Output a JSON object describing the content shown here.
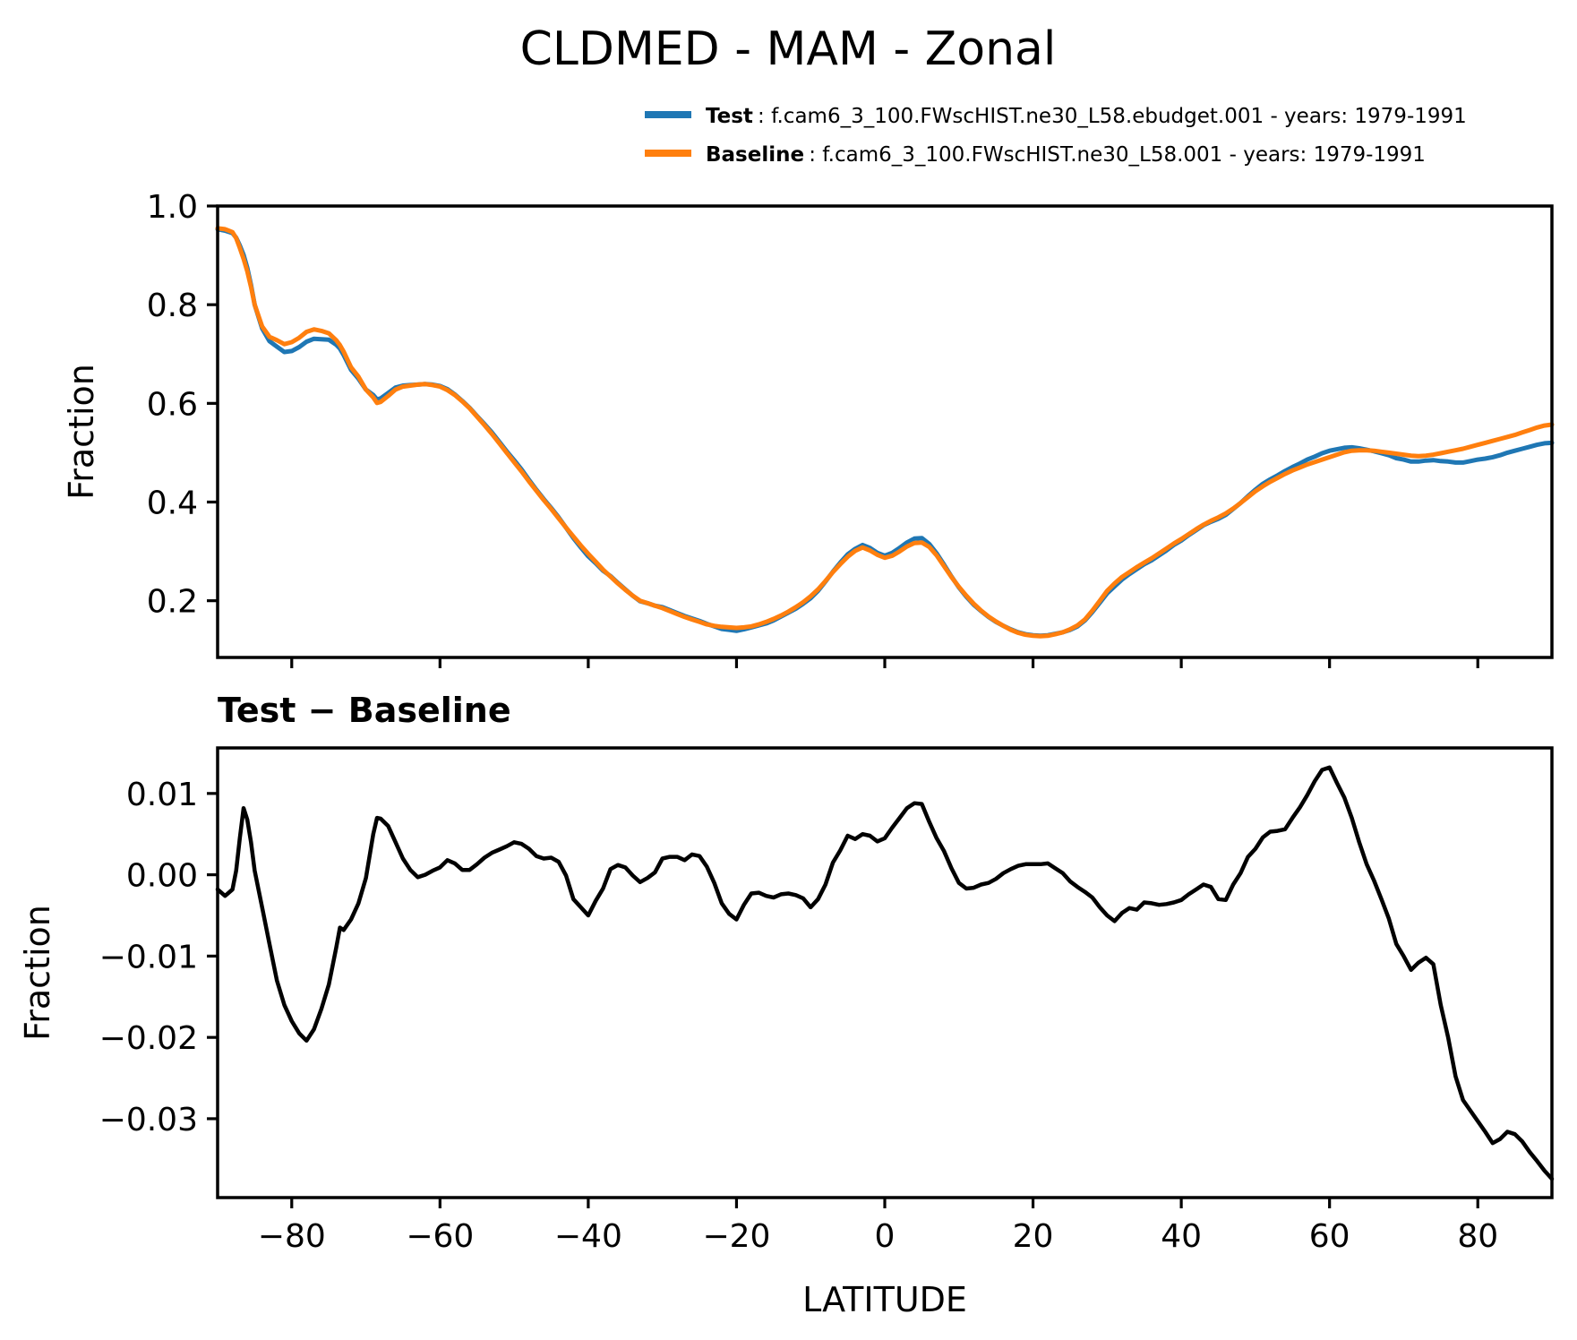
{
  "title": "CLDMED - MAM - Zonal",
  "legend": {
    "entries": [
      {
        "label": "Test",
        "rest": " : f.cam6_3_100.FWscHIST.ne30_L58.ebudget.001 - years: 1979-1991",
        "color": "#1f77b4"
      },
      {
        "label": "Baseline",
        "rest": " : f.cam6_3_100.FWscHIST.ne30_L58.001 - years: 1979-1991",
        "color": "#ff7f0e"
      }
    ]
  },
  "chart_data": {
    "type": "line",
    "x_axis_name": "LATITUDE",
    "xlim": [
      -90,
      90
    ],
    "grid": false,
    "legend_position": "top-right-above-axes",
    "x_ticks": {
      "values": [
        -80,
        -60,
        -40,
        -20,
        0,
        20,
        40,
        60,
        80
      ],
      "labels": [
        "−80",
        "−60",
        "−40",
        "−20",
        "0",
        "20",
        "40",
        "60",
        "80"
      ]
    },
    "x_latitude": [
      -90,
      -89,
      -88,
      -87.5,
      -87,
      -86.5,
      -86,
      -85.5,
      -85,
      -84,
      -83,
      -82,
      -81,
      -80,
      -79,
      -78,
      -77,
      -76,
      -75,
      -74,
      -73.5,
      -73,
      -72,
      -71,
      -70,
      -69,
      -68.5,
      -68,
      -67,
      -66,
      -65,
      -64,
      -63,
      -62,
      -61,
      -60,
      -59,
      -58,
      -57,
      -56,
      -55,
      -54,
      -53,
      -52,
      -51,
      -50,
      -49,
      -48,
      -47,
      -46,
      -45,
      -44,
      -43,
      -42,
      -41,
      -40,
      -39,
      -38,
      -37,
      -36,
      -35,
      -34,
      -33,
      -32,
      -31,
      -30,
      -29,
      -28,
      -27,
      -26,
      -25,
      -24,
      -23,
      -22,
      -21,
      -20,
      -19,
      -18,
      -17,
      -16,
      -15,
      -14,
      -13,
      -12,
      -11,
      -10,
      -9,
      -8,
      -7,
      -6,
      -5,
      -4,
      -3,
      -2,
      -1,
      0,
      1,
      2,
      3,
      4,
      5,
      6,
      7,
      8,
      9,
      10,
      11,
      12,
      13,
      14,
      15,
      16,
      17,
      18,
      19,
      20,
      21,
      22,
      23,
      24,
      25,
      26,
      27,
      28,
      29,
      30,
      31,
      32,
      33,
      34,
      35,
      36,
      37,
      38,
      39,
      40,
      41,
      42,
      43,
      44,
      45,
      46,
      47,
      48,
      49,
      50,
      51,
      52,
      53,
      54,
      55,
      56,
      57,
      58,
      59,
      60,
      61,
      62,
      63,
      64,
      65,
      66,
      67,
      68,
      69,
      70,
      71,
      72,
      73,
      74,
      75,
      76,
      77,
      78,
      79,
      80,
      81,
      82,
      83,
      84,
      85,
      86,
      87,
      88,
      89,
      90
    ],
    "panels": [
      {
        "name": "top",
        "ylabel": "Fraction",
        "ylim": [
          0.085,
          1.0
        ],
        "y_ticks": {
          "values": [
            1.0,
            0.8,
            0.6,
            0.4,
            0.2
          ],
          "labels": [
            "1.0",
            "0.8",
            "0.6",
            "0.4",
            "0.2"
          ]
        },
        "series": [
          {
            "name": "Test",
            "color": "#1f77b4",
            "values": [
              0.953,
              0.95,
              0.945,
              0.936,
              0.92,
              0.901,
              0.875,
              0.84,
              0.8,
              0.752,
              0.726,
              0.715,
              0.704,
              0.706,
              0.714,
              0.725,
              0.731,
              0.73,
              0.729,
              0.719,
              0.711,
              0.698,
              0.668,
              0.65,
              0.628,
              0.617,
              0.608,
              0.61,
              0.621,
              0.632,
              0.636,
              0.637,
              0.638,
              0.639,
              0.638,
              0.635,
              0.629,
              0.618,
              0.605,
              0.591,
              0.574,
              0.558,
              0.541,
              0.522,
              0.503,
              0.485,
              0.466,
              0.445,
              0.425,
              0.406,
              0.388,
              0.369,
              0.348,
              0.327,
              0.308,
              0.29,
              0.276,
              0.261,
              0.25,
              0.236,
              0.223,
              0.21,
              0.199,
              0.195,
              0.19,
              0.187,
              0.181,
              0.175,
              0.169,
              0.164,
              0.159,
              0.153,
              0.148,
              0.143,
              0.141,
              0.139,
              0.142,
              0.146,
              0.15,
              0.154,
              0.16,
              0.168,
              0.176,
              0.184,
              0.194,
              0.205,
              0.22,
              0.239,
              0.259,
              0.277,
              0.294,
              0.305,
              0.313,
              0.307,
              0.297,
              0.291,
              0.297,
              0.307,
              0.318,
              0.326,
              0.327,
              0.315,
              0.296,
              0.273,
              0.249,
              0.227,
              0.208,
              0.192,
              0.179,
              0.167,
              0.157,
              0.149,
              0.142,
              0.136,
              0.132,
              0.13,
              0.129,
              0.13,
              0.133,
              0.136,
              0.141,
              0.148,
              0.16,
              0.177,
              0.196,
              0.215,
              0.229,
              0.243,
              0.254,
              0.264,
              0.274,
              0.282,
              0.292,
              0.302,
              0.313,
              0.322,
              0.333,
              0.343,
              0.353,
              0.36,
              0.366,
              0.374,
              0.386,
              0.398,
              0.412,
              0.425,
              0.437,
              0.446,
              0.454,
              0.463,
              0.471,
              0.478,
              0.486,
              0.492,
              0.499,
              0.504,
              0.507,
              0.51,
              0.511,
              0.509,
              0.506,
              0.503,
              0.499,
              0.495,
              0.489,
              0.486,
              0.482,
              0.482,
              0.484,
              0.485,
              0.483,
              0.482,
              0.48,
              0.48,
              0.483,
              0.486,
              0.488,
              0.491,
              0.495,
              0.5,
              0.504,
              0.508,
              0.512,
              0.516,
              0.519,
              0.52
            ]
          },
          {
            "name": "Baseline",
            "color": "#ff7f0e",
            "values": [
              0.955,
              0.953,
              0.947,
              0.935,
              0.915,
              0.893,
              0.868,
              0.836,
              0.8,
              0.756,
              0.735,
              0.728,
              0.72,
              0.724,
              0.733,
              0.745,
              0.75,
              0.747,
              0.742,
              0.728,
              0.718,
              0.705,
              0.673,
              0.654,
              0.628,
              0.612,
              0.601,
              0.603,
              0.615,
              0.628,
              0.634,
              0.636,
              0.638,
              0.639,
              0.637,
              0.634,
              0.627,
              0.617,
              0.604,
              0.59,
              0.573,
              0.556,
              0.538,
              0.519,
              0.5,
              0.481,
              0.462,
              0.442,
              0.423,
              0.404,
              0.386,
              0.367,
              0.348,
              0.33,
              0.312,
              0.295,
              0.279,
              0.263,
              0.249,
              0.235,
              0.222,
              0.21,
              0.2,
              0.195,
              0.19,
              0.185,
              0.179,
              0.173,
              0.167,
              0.162,
              0.157,
              0.152,
              0.149,
              0.147,
              0.146,
              0.145,
              0.146,
              0.148,
              0.152,
              0.157,
              0.163,
              0.17,
              0.178,
              0.187,
              0.197,
              0.209,
              0.223,
              0.24,
              0.258,
              0.274,
              0.289,
              0.301,
              0.308,
              0.302,
              0.293,
              0.287,
              0.291,
              0.3,
              0.31,
              0.317,
              0.318,
              0.309,
              0.292,
              0.27,
              0.248,
              0.228,
              0.21,
              0.194,
              0.18,
              0.168,
              0.158,
              0.149,
              0.141,
              0.135,
              0.131,
              0.129,
              0.128,
              0.129,
              0.132,
              0.136,
              0.142,
              0.15,
              0.162,
              0.18,
              0.2,
              0.22,
              0.235,
              0.248,
              0.258,
              0.268,
              0.277,
              0.286,
              0.296,
              0.306,
              0.316,
              0.325,
              0.335,
              0.345,
              0.354,
              0.362,
              0.369,
              0.377,
              0.387,
              0.398,
              0.41,
              0.422,
              0.432,
              0.441,
              0.449,
              0.457,
              0.464,
              0.47,
              0.476,
              0.481,
              0.486,
              0.491,
              0.496,
              0.501,
              0.504,
              0.505,
              0.505,
              0.504,
              0.502,
              0.5,
              0.498,
              0.496,
              0.494,
              0.493,
              0.494,
              0.496,
              0.499,
              0.502,
              0.505,
              0.508,
              0.512,
              0.516,
              0.52,
              0.524,
              0.528,
              0.532,
              0.536,
              0.541,
              0.546,
              0.551,
              0.555,
              0.557
            ]
          }
        ]
      },
      {
        "name": "bottom",
        "title": "Test − Baseline",
        "xlabel": "LATITUDE",
        "ylabel": "Fraction",
        "ylim": [
          -0.0397,
          0.0156
        ],
        "y_ticks": {
          "values": [
            0.01,
            0.0,
            -0.01,
            -0.02,
            -0.03
          ],
          "labels": [
            "0.01",
            "0.00",
            "−0.01",
            "−0.02",
            "−0.03"
          ]
        },
        "series": [
          {
            "name": "Test − Baseline",
            "color": "#000000",
            "values": [
              -0.0018,
              -0.0026,
              -0.0018,
              0.0005,
              0.0045,
              0.0082,
              0.0068,
              0.004,
              0.0005,
              -0.004,
              -0.0085,
              -0.013,
              -0.016,
              -0.018,
              -0.0195,
              -0.0204,
              -0.019,
              -0.0165,
              -0.0135,
              -0.009,
              -0.0065,
              -0.0068,
              -0.0055,
              -0.0035,
              -0.0004,
              0.005,
              0.007,
              0.0069,
              0.006,
              0.004,
              0.002,
              0.0006,
              -0.0003,
              0.0,
              0.0005,
              0.0009,
              0.0018,
              0.0014,
              0.0006,
              0.0006,
              0.0013,
              0.0021,
              0.0027,
              0.0031,
              0.0035,
              0.004,
              0.0038,
              0.0032,
              0.0023,
              0.002,
              0.0021,
              0.0016,
              -0.0001,
              -0.003,
              -0.004,
              -0.005,
              -0.0032,
              -0.0017,
              0.0007,
              0.0012,
              0.0009,
              -0.0001,
              -0.0009,
              -0.0004,
              0.0003,
              0.002,
              0.0022,
              0.0022,
              0.0018,
              0.0025,
              0.0023,
              0.001,
              -0.001,
              -0.0035,
              -0.0048,
              -0.0055,
              -0.0037,
              -0.0023,
              -0.0022,
              -0.0026,
              -0.0028,
              -0.0024,
              -0.0023,
              -0.0025,
              -0.0029,
              -0.004,
              -0.003,
              -0.0012,
              0.0015,
              0.003,
              0.0048,
              0.0044,
              0.005,
              0.0048,
              0.0041,
              0.0045,
              0.0058,
              0.007,
              0.0082,
              0.0088,
              0.0087,
              0.0065,
              0.0045,
              0.0029,
              0.0008,
              -0.001,
              -0.0017,
              -0.0016,
              -0.0012,
              -0.001,
              -0.0005,
              0.0002,
              0.0007,
              0.0011,
              0.0013,
              0.0013,
              0.0013,
              0.0014,
              0.0008,
              0.0002,
              -0.0008,
              -0.0015,
              -0.0021,
              -0.0028,
              -0.004,
              -0.005,
              -0.0057,
              -0.0047,
              -0.0041,
              -0.0043,
              -0.0034,
              -0.0035,
              -0.0037,
              -0.0036,
              -0.0034,
              -0.0031,
              -0.0024,
              -0.0018,
              -0.0012,
              -0.0015,
              -0.003,
              -0.0031,
              -0.0012,
              0.0002,
              0.0022,
              0.0032,
              0.0046,
              0.0053,
              0.0054,
              0.0056,
              0.007,
              0.0083,
              0.0098,
              0.0115,
              0.0129,
              0.0132,
              0.0113,
              0.0095,
              0.007,
              0.004,
              0.0013,
              -0.0007,
              -0.003,
              -0.0054,
              -0.0085,
              -0.01,
              -0.0117,
              -0.0108,
              -0.0102,
              -0.011,
              -0.016,
              -0.02,
              -0.0248,
              -0.0277,
              -0.029,
              -0.0303,
              -0.0316,
              -0.033,
              -0.0325,
              -0.0316,
              -0.0319,
              -0.0328,
              -0.0341,
              -0.0352,
              -0.0364,
              -0.0374
            ]
          }
        ]
      }
    ]
  }
}
